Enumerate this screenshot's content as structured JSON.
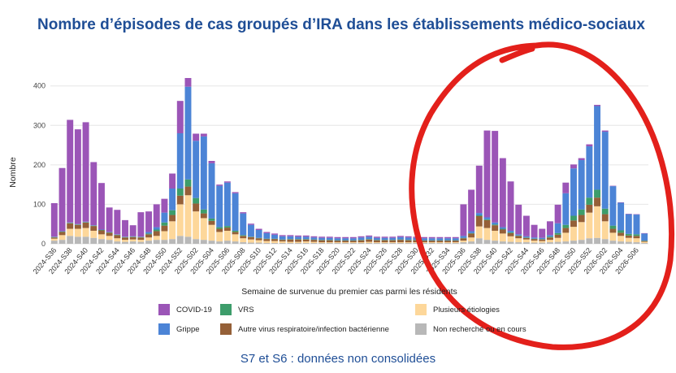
{
  "title": "Nombre d’épisodes de cas groupés d’IRA dans les établissements médico-sociaux",
  "footer": "S7 et S6 : données non consolidées",
  "annotation": {
    "shape": "red-freehand-circle",
    "color": "#e3201b"
  },
  "chart_data": {
    "type": "stacked-bar",
    "xlabel": "Semaine de survenue du premier cas parmi les résidents",
    "ylabel": "Nombre",
    "ylim": [
      0,
      420
    ],
    "yticks": [
      0,
      100,
      200,
      300,
      400
    ],
    "grid": true,
    "legend_position": "bottom",
    "categories": [
      "2024-S36",
      "2024-S37",
      "2024-S38",
      "2024-S39",
      "2024-S40",
      "2024-S41",
      "2024-S42",
      "2024-S43",
      "2024-S44",
      "2024-S45",
      "2024-S46",
      "2024-S47",
      "2024-S48",
      "2024-S49",
      "2024-S50",
      "2024-S51",
      "2024-S52",
      "2025-S01",
      "2025-S02",
      "2025-S03",
      "2025-S04",
      "2025-S05",
      "2025-S06",
      "2025-S07",
      "2025-S08",
      "2025-S09",
      "2025-S10",
      "2025-S11",
      "2025-S12",
      "2025-S13",
      "2025-S14",
      "2025-S15",
      "2025-S16",
      "2025-S17",
      "2025-S18",
      "2025-S19",
      "2025-S20",
      "2025-S21",
      "2025-S22",
      "2025-S23",
      "2025-S24",
      "2025-S25",
      "2025-S26",
      "2025-S27",
      "2025-S28",
      "2025-S29",
      "2025-S30",
      "2025-S31",
      "2025-S32",
      "2025-S33",
      "2025-S34",
      "2025-S35",
      "2025-S36",
      "2025-S37",
      "2025-S38",
      "2025-S39",
      "2025-S40",
      "2025-S41",
      "2025-S42",
      "2025-S43",
      "2025-S44",
      "2025-S45",
      "2025-S46",
      "2025-S47",
      "2025-S48",
      "2025-S49",
      "2025-S50",
      "2025-S51",
      "2025-S52",
      "2026-S01",
      "2026-S02",
      "2026-S03",
      "2026-S04",
      "2026-S05",
      "2026-S06",
      "2026-S07"
    ],
    "tick_labels": [
      "2024-S36",
      "2024-S38",
      "2024-S40",
      "2024-S42",
      "2024-S44",
      "2024-S46",
      "2024-S48",
      "2024-S50",
      "2024-S52",
      "2025-S02",
      "2025-S04",
      "2025-S06",
      "2025-S08",
      "2025-S10",
      "2025-S12",
      "2025-S14",
      "2025-S16",
      "2025-S18",
      "2025-S20",
      "2025-S22",
      "2025-S24",
      "2025-S26",
      "2025-S28",
      "2025-S30",
      "2025-S32",
      "2025-S34",
      "2025-S36",
      "2025-S38",
      "2025-S40",
      "2025-S42",
      "2025-S44",
      "2025-S46",
      "2025-S48",
      "2025-S50",
      "2025-S52",
      "2026-S02",
      "2026-S04",
      "2026-S06"
    ],
    "series": [
      {
        "name": "Non recherché ou en cours",
        "color": "#b8b8b8",
        "values": [
          8,
          10,
          20,
          18,
          18,
          15,
          12,
          10,
          6,
          5,
          6,
          5,
          8,
          10,
          10,
          12,
          20,
          18,
          12,
          10,
          8,
          6,
          8,
          6,
          4,
          3,
          3,
          2,
          2,
          2,
          2,
          2,
          2,
          2,
          2,
          2,
          2,
          2,
          2,
          2,
          2,
          2,
          2,
          2,
          2,
          2,
          2,
          2,
          2,
          2,
          2,
          2,
          4,
          6,
          14,
          10,
          8,
          6,
          5,
          4,
          4,
          3,
          3,
          4,
          5,
          6,
          8,
          10,
          14,
          15,
          12,
          8,
          6,
          5,
          4,
          2
        ]
      },
      {
        "name": "Plusieurs étiologies",
        "color": "#fdd79a",
        "values": [
          5,
          12,
          18,
          20,
          22,
          18,
          12,
          10,
          8,
          5,
          5,
          5,
          8,
          10,
          22,
          45,
          80,
          105,
          70,
          55,
          40,
          24,
          25,
          18,
          10,
          8,
          6,
          5,
          5,
          4,
          3,
          3,
          4,
          3,
          2,
          2,
          2,
          2,
          2,
          2,
          3,
          2,
          2,
          2,
          2,
          2,
          2,
          2,
          2,
          2,
          2,
          2,
          4,
          10,
          30,
          30,
          25,
          20,
          14,
          10,
          7,
          5,
          4,
          6,
          10,
          22,
          35,
          45,
          65,
          80,
          45,
          20,
          14,
          10,
          10,
          3
        ]
      },
      {
        "name": "Autre virus respiratoire/infection bactérienne",
        "color": "#956038",
        "values": [
          3,
          8,
          14,
          10,
          14,
          12,
          10,
          8,
          8,
          6,
          6,
          6,
          8,
          12,
          14,
          16,
          22,
          22,
          20,
          12,
          10,
          8,
          8,
          6,
          6,
          6,
          5,
          5,
          5,
          4,
          6,
          6,
          5,
          5,
          5,
          5,
          4,
          4,
          4,
          5,
          6,
          5,
          5,
          5,
          6,
          5,
          5,
          4,
          4,
          4,
          4,
          4,
          6,
          10,
          26,
          20,
          14,
          10,
          8,
          6,
          4,
          4,
          4,
          6,
          8,
          12,
          16,
          18,
          20,
          22,
          18,
          10,
          8,
          6,
          6,
          2
        ]
      },
      {
        "name": "VRS",
        "color": "#3d9d6b",
        "values": [
          1,
          1,
          1,
          1,
          1,
          1,
          1,
          1,
          1,
          1,
          1,
          1,
          2,
          4,
          8,
          12,
          18,
          18,
          14,
          10,
          6,
          4,
          4,
          3,
          2,
          1,
          1,
          1,
          1,
          1,
          1,
          1,
          1,
          1,
          1,
          1,
          1,
          1,
          1,
          1,
          1,
          1,
          1,
          1,
          1,
          1,
          1,
          1,
          1,
          1,
          1,
          1,
          1,
          1,
          2,
          2,
          2,
          2,
          2,
          1,
          1,
          1,
          1,
          2,
          4,
          8,
          12,
          14,
          18,
          20,
          14,
          8,
          6,
          4,
          4,
          1
        ]
      },
      {
        "name": "Grippe",
        "color": "#4c84d6",
        "values": [
          1,
          1,
          1,
          1,
          1,
          1,
          1,
          1,
          1,
          1,
          1,
          1,
          4,
          6,
          25,
          55,
          140,
          235,
          145,
          185,
          140,
          105,
          110,
          95,
          55,
          30,
          20,
          14,
          10,
          8,
          7,
          6,
          6,
          5,
          5,
          5,
          5,
          5,
          5,
          6,
          6,
          5,
          5,
          5,
          6,
          6,
          5,
          5,
          5,
          5,
          5,
          5,
          5,
          5,
          6,
          5,
          5,
          4,
          4,
          3,
          3,
          3,
          3,
          4,
          25,
          80,
          120,
          125,
          130,
          212,
          195,
          100,
          70,
          50,
          50,
          18
        ]
      },
      {
        "name": "COVID-19",
        "color": "#9b55b7",
        "values": [
          85,
          160,
          260,
          240,
          252,
          160,
          118,
          62,
          62,
          42,
          28,
          62,
          52,
          58,
          35,
          38,
          82,
          22,
          18,
          7,
          6,
          3,
          3,
          3,
          3,
          3,
          3,
          3,
          3,
          3,
          3,
          3,
          3,
          3,
          3,
          3,
          3,
          3,
          3,
          3,
          3,
          3,
          3,
          3,
          3,
          3,
          3,
          3,
          3,
          3,
          3,
          3,
          80,
          105,
          120,
          220,
          232,
          175,
          125,
          75,
          52,
          32,
          23,
          35,
          47,
          27,
          10,
          5,
          5,
          3,
          3,
          1,
          1,
          1,
          1,
          1
        ]
      }
    ]
  }
}
